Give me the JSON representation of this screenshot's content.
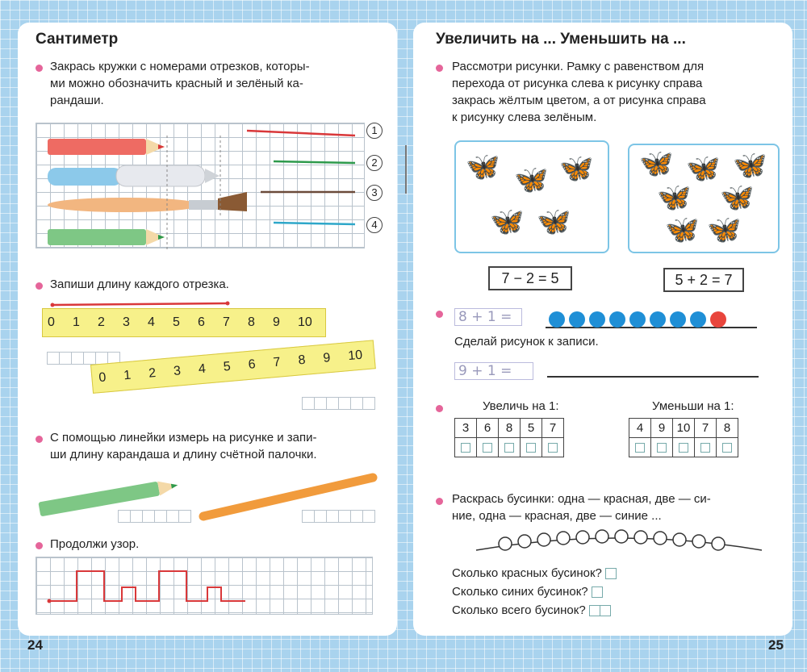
{
  "left_page": {
    "title": "Сантиметр",
    "task1": {
      "text_line1": "Закрась кружки с номерами отрезков, которы-",
      "text_line2": "ми можно обозначить красный и зелёный ка-",
      "text_line3": "рандаши.",
      "segment_numbers": [
        "1",
        "2",
        "3",
        "4"
      ],
      "segment_colors": [
        "#d9383a",
        "#2e9a4c",
        "#6b4b3a",
        "#2ea7c9"
      ]
    },
    "task2": {
      "text": "Запиши длину каждого отрезка.",
      "ruler_labels": [
        "0",
        "1",
        "2",
        "3",
        "4",
        "5",
        "6",
        "7",
        "8",
        "9",
        "10"
      ]
    },
    "task3": {
      "text_line1": "С помощью линейки измерь на рисунке и запи-",
      "text_line2": "ши длину карандаша и длину счётной палочки."
    },
    "task4": {
      "text": "Продолжи узор."
    },
    "page_number": "24"
  },
  "right_page": {
    "title": "Увеличить на ... Уменьшить на ...",
    "task1": {
      "text_line1": "Рассмотри рисунки. Рамку с равенством для",
      "text_line2": "перехода от рисунка слева к рисунку справа",
      "text_line3": "закрась жёлтым цветом, а от рисунка справа",
      "text_line4": "к рисунку слева зелёным.",
      "equation_left": "7 − 2 = 5",
      "equation_right": "5 + 2 = 7"
    },
    "task2": {
      "expr1": "8 + 1 =",
      "instruction": "Сделай рисунок к записи.",
      "expr2": "9 + 1 =",
      "bead_colors": [
        "#1f8fd6",
        "#1f8fd6",
        "#1f8fd6",
        "#1f8fd6",
        "#1f8fd6",
        "#1f8fd6",
        "#1f8fd6",
        "#1f8fd6",
        "#e8453c"
      ]
    },
    "task3": {
      "increase_label": "Увеличь на 1:",
      "decrease_label": "Уменьши на 1:",
      "increase_numbers": [
        "3",
        "6",
        "8",
        "5",
        "7"
      ],
      "decrease_numbers": [
        "4",
        "9",
        "10",
        "7",
        "8"
      ]
    },
    "task4": {
      "text_line1": "Раскрась бусинки: одна — красная, две — си-",
      "text_line2": "ние, одна — красная, две — синие ...",
      "q1": "Сколько красных бусинок?",
      "q2": "Сколько синих бусинок?",
      "q3": "Сколько всего бусинок?"
    },
    "page_number": "25"
  }
}
